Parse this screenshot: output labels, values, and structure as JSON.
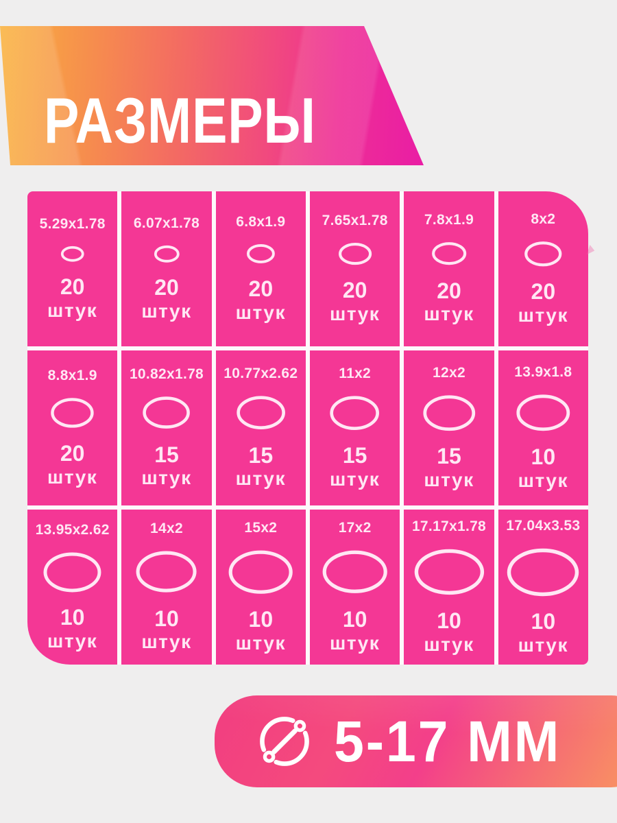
{
  "header": {
    "title": "РАЗМЕРЫ"
  },
  "colors": {
    "background": "#efeeee",
    "cell_pink": "#f43795",
    "cell_text": "#ffe7f4",
    "gap_white": "#fdf8fb",
    "header_gradient_start": "#f9b23d",
    "header_gradient_end": "#e91ca6",
    "badge_gradient_start": "#f23e80",
    "badge_gradient_end": "#f99c5e"
  },
  "grid": {
    "unit_label": "штук",
    "cells": [
      {
        "size": "5.29x1.78",
        "count": "20",
        "ellipse": [
          30,
          19
        ]
      },
      {
        "size": "6.07x1.78",
        "count": "20",
        "ellipse": [
          33,
          21
        ]
      },
      {
        "size": "6.8x1.9",
        "count": "20",
        "ellipse": [
          37,
          24
        ]
      },
      {
        "size": "7.65x1.78",
        "count": "20",
        "ellipse": [
          44,
          28
        ]
      },
      {
        "size": "7.8x1.9",
        "count": "20",
        "ellipse": [
          46,
          29
        ]
      },
      {
        "size": "8x2",
        "count": "20",
        "ellipse": [
          50,
          32
        ]
      },
      {
        "size": "8.8x1.9",
        "count": "20",
        "ellipse": [
          58,
          39
        ]
      },
      {
        "size": "10.82x1.78",
        "count": "15",
        "ellipse": [
          64,
          42
        ]
      },
      {
        "size": "10.77x2.62",
        "count": "15",
        "ellipse": [
          66,
          44
        ]
      },
      {
        "size": "11x2",
        "count": "15",
        "ellipse": [
          67,
          45
        ]
      },
      {
        "size": "12x2",
        "count": "15",
        "ellipse": [
          71,
          47
        ]
      },
      {
        "size": "13.9x1.8",
        "count": "10",
        "ellipse": [
          73,
          48
        ]
      },
      {
        "size": "13.95x2.62",
        "count": "10",
        "ellipse": [
          79,
          53
        ]
      },
      {
        "size": "14x2",
        "count": "10",
        "ellipse": [
          83,
          55
        ]
      },
      {
        "size": "15x2",
        "count": "10",
        "ellipse": [
          88,
          58
        ]
      },
      {
        "size": "17x2",
        "count": "10",
        "ellipse": [
          89,
          57
        ]
      },
      {
        "size": "17.17x1.78",
        "count": "10",
        "ellipse": [
          96,
          61
        ]
      },
      {
        "size": "17.04x3.53",
        "count": "10",
        "ellipse": [
          99,
          64
        ]
      }
    ]
  },
  "badge": {
    "label": "5-17 ММ",
    "icon": "diameter-icon"
  }
}
